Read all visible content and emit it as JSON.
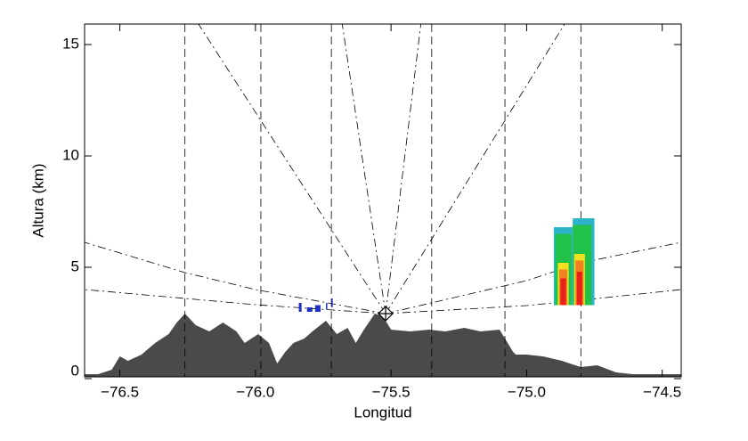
{
  "chart_data": {
    "type": "area",
    "xlabel": "Longitud",
    "ylabel": "Altura (km)",
    "xlim": [
      -76.63,
      -74.43
    ],
    "ylim": [
      0.08,
      15.92
    ],
    "xticks": [
      {
        "value": -76.5,
        "label": "−76.5"
      },
      {
        "value": -76.0,
        "label": "−76.0"
      },
      {
        "value": -75.5,
        "label": "−75.5"
      },
      {
        "value": -75.0,
        "label": "−75.0"
      },
      {
        "value": -74.5,
        "label": "−74.5"
      }
    ],
    "yticks": [
      0,
      5,
      10,
      15
    ],
    "terrain": {
      "color": "#4a4a4a",
      "x": [
        -76.63,
        -76.58,
        -76.53,
        -76.5,
        -76.47,
        -76.42,
        -76.37,
        -76.32,
        -76.29,
        -76.26,
        -76.22,
        -76.17,
        -76.12,
        -76.07,
        -76.04,
        -75.99,
        -75.95,
        -75.92,
        -75.89,
        -75.86,
        -75.82,
        -75.79,
        -75.74,
        -75.7,
        -75.66,
        -75.63,
        -75.6,
        -75.56,
        -75.53,
        -75.5,
        -75.43,
        -75.36,
        -75.3,
        -75.23,
        -75.17,
        -75.1,
        -75.05,
        -75.04,
        -75.0,
        -74.94,
        -74.87,
        -74.8,
        -74.74,
        -74.67,
        -74.61,
        -74.51,
        -74.43
      ],
      "values": [
        0.2,
        0.2,
        0.4,
        1.0,
        0.8,
        1.08,
        1.6,
        2.0,
        2.52,
        2.92,
        2.4,
        2.12,
        2.52,
        2.12,
        1.6,
        2.0,
        1.6,
        0.68,
        1.2,
        1.6,
        1.8,
        2.12,
        2.6,
        2.0,
        2.28,
        1.6,
        2.2,
        2.92,
        2.8,
        2.2,
        2.12,
        2.2,
        2.12,
        2.28,
        2.12,
        2.2,
        1.2,
        1.08,
        1.08,
        1.0,
        0.8,
        0.52,
        0.6,
        0.28,
        0.2,
        0.2,
        0.2
      ]
    },
    "vertical_lines": [
      -76.26,
      -75.98,
      -75.72,
      -75.35,
      -75.08,
      -74.8
    ],
    "radar": {
      "x": -75.52,
      "y": 2.92
    },
    "beams": [
      {
        "x": [
          -75.52,
          -76.21
        ],
        "y": [
          2.92,
          15.92
        ]
      },
      {
        "x": [
          -75.52,
          -75.68
        ],
        "y": [
          2.92,
          15.92
        ]
      },
      {
        "x": [
          -75.52,
          -75.39
        ],
        "y": [
          2.92,
          15.92
        ]
      },
      {
        "x": [
          -75.52,
          -74.86
        ],
        "y": [
          2.92,
          15.92
        ]
      },
      {
        "x": [
          -75.52,
          -76.0,
          -76.26,
          -76.63
        ],
        "y": [
          2.92,
          4.0,
          4.76,
          6.12
        ]
      },
      {
        "x": [
          -75.52,
          -76.0,
          -76.26,
          -76.63
        ],
        "y": [
          2.92,
          3.32,
          3.6,
          4.0
        ]
      },
      {
        "x": [
          -75.52,
          -75.0,
          -74.8,
          -74.43
        ],
        "y": [
          2.92,
          4.4,
          5.2,
          6.12
        ]
      },
      {
        "x": [
          -75.52,
          -75.0,
          -74.8,
          -74.43
        ],
        "y": [
          2.92,
          3.28,
          3.52,
          4.0
        ]
      }
    ],
    "echoes": [
      {
        "x0": -75.84,
        "x1": -75.83,
        "bottom": 3.0,
        "top": 3.4,
        "color": "#2030c0"
      },
      {
        "x0": -75.81,
        "x1": -75.79,
        "bottom": 3.0,
        "top": 3.2,
        "color": "#2030c0"
      },
      {
        "x0": -75.78,
        "x1": -75.76,
        "bottom": 3.0,
        "top": 3.3,
        "color": "#2030c0"
      },
      {
        "x0": -75.74,
        "x1": -75.735,
        "bottom": 3.1,
        "top": 3.4,
        "color": "#2030c0"
      },
      {
        "x0": -75.72,
        "x1": -75.715,
        "bottom": 3.2,
        "top": 3.6,
        "color": "#2030c0"
      },
      {
        "x0": -74.9,
        "x1": -74.83,
        "bottom": 3.3,
        "top": 6.8,
        "color": "#2db4c8"
      },
      {
        "x0": -74.83,
        "x1": -74.75,
        "bottom": 3.3,
        "top": 7.2,
        "color": "#2db4c8"
      },
      {
        "x0": -74.895,
        "x1": -74.835,
        "bottom": 3.3,
        "top": 6.5,
        "color": "#22c24a"
      },
      {
        "x0": -74.83,
        "x1": -74.76,
        "bottom": 3.3,
        "top": 6.9,
        "color": "#22c24a"
      },
      {
        "x0": -74.885,
        "x1": -74.845,
        "bottom": 3.3,
        "top": 5.2,
        "color": "#f0e020"
      },
      {
        "x0": -74.825,
        "x1": -74.785,
        "bottom": 3.3,
        "top": 5.6,
        "color": "#f0e020"
      },
      {
        "x0": -74.88,
        "x1": -74.85,
        "bottom": 3.3,
        "top": 4.9,
        "color": "#f08020"
      },
      {
        "x0": -74.82,
        "x1": -74.79,
        "bottom": 3.3,
        "top": 5.3,
        "color": "#f08020"
      },
      {
        "x0": -74.875,
        "x1": -74.855,
        "bottom": 3.3,
        "top": 4.5,
        "color": "#e8201c"
      },
      {
        "x0": -74.815,
        "x1": -74.795,
        "bottom": 3.3,
        "top": 4.8,
        "color": "#e8201c"
      }
    ]
  }
}
